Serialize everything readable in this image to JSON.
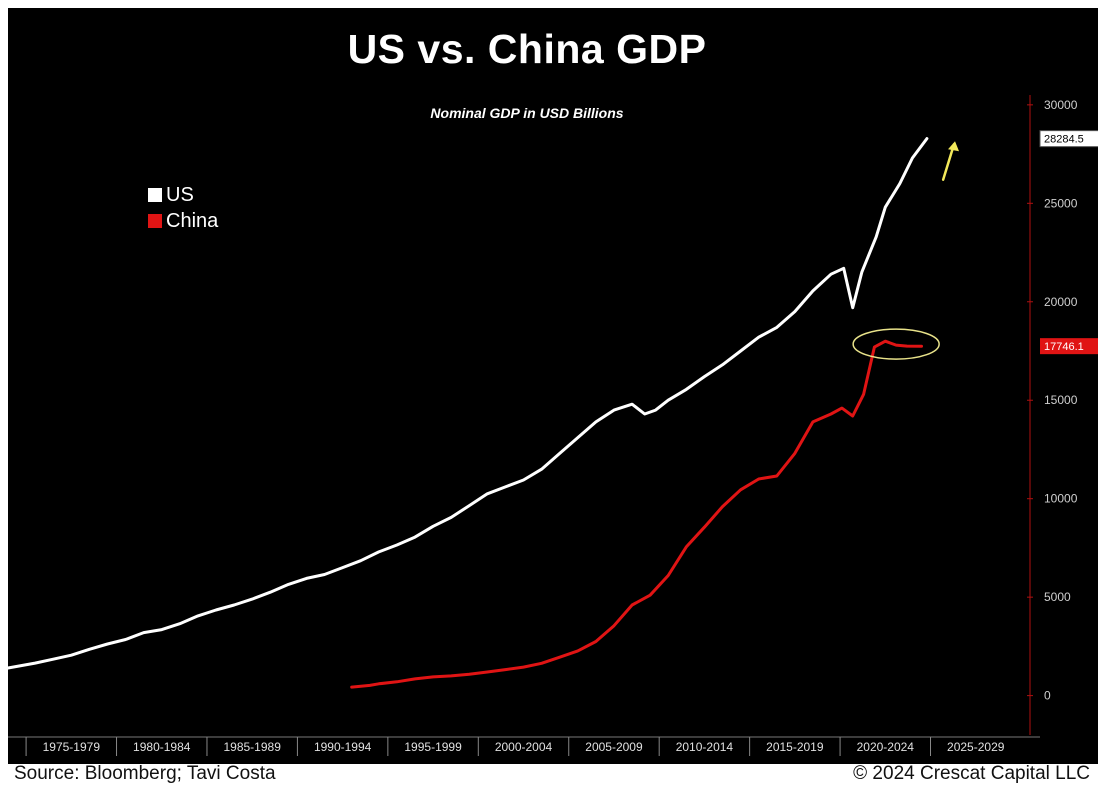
{
  "header": {
    "title": "US vs. China GDP",
    "subtitle": "Nominal GDP in USD Billions"
  },
  "footer": {
    "source": "Source: Bloomberg; Tavi Costa",
    "copyright": "© 2024 Crescat Capital LLC"
  },
  "colors": {
    "background": "#000000",
    "us": "#ffffff",
    "china": "#e01414",
    "highlight": "#e8e28a",
    "arrow": "#f2e85a"
  },
  "chart_data": {
    "type": "line",
    "title": "US vs. China GDP",
    "subtitle": "Nominal GDP in USD Billions",
    "xlabel": "",
    "ylabel": "",
    "ylim": [
      -2000,
      30500
    ],
    "xlim": [
      1973.5,
      2030
    ],
    "yticks": [
      0,
      5000,
      10000,
      15000,
      20000,
      25000,
      30000
    ],
    "ytick_labels": [
      "0",
      "5000",
      "10000",
      "15000",
      "20000",
      "25000",
      "30000"
    ],
    "xtick_labels": [
      "1975-1979",
      "1980-1984",
      "1985-1989",
      "1990-1994",
      "1995-1999",
      "2000-2004",
      "2005-2009",
      "2010-2014",
      "2015-2019",
      "2020-2024",
      "2025-2029"
    ],
    "legend_position": "top-left",
    "grid": false,
    "series": [
      {
        "name": "US",
        "color": "#ffffff",
        "last_value_label": "28284.5",
        "points": [
          [
            1973.5,
            1400
          ],
          [
            1975,
            1650
          ],
          [
            1976,
            1850
          ],
          [
            1977,
            2050
          ],
          [
            1978,
            2350
          ],
          [
            1979,
            2620
          ],
          [
            1980,
            2850
          ],
          [
            1981,
            3200
          ],
          [
            1982,
            3350
          ],
          [
            1983,
            3650
          ],
          [
            1984,
            4050
          ],
          [
            1985,
            4350
          ],
          [
            1986,
            4600
          ],
          [
            1987,
            4900
          ],
          [
            1988,
            5250
          ],
          [
            1989,
            5650
          ],
          [
            1990,
            5950
          ],
          [
            1991,
            6150
          ],
          [
            1992,
            6500
          ],
          [
            1993,
            6850
          ],
          [
            1994,
            7300
          ],
          [
            1995,
            7650
          ],
          [
            1996,
            8050
          ],
          [
            1997,
            8600
          ],
          [
            1998,
            9050
          ],
          [
            1999,
            9650
          ],
          [
            2000,
            10250
          ],
          [
            2001,
            10600
          ],
          [
            2002,
            10950
          ],
          [
            2003,
            11500
          ],
          [
            2004,
            12300
          ],
          [
            2005,
            13100
          ],
          [
            2006,
            13900
          ],
          [
            2007,
            14500
          ],
          [
            2008,
            14800
          ],
          [
            2008.7,
            14300
          ],
          [
            2009.3,
            14500
          ],
          [
            2010,
            15000
          ],
          [
            2011,
            15550
          ],
          [
            2012,
            16200
          ],
          [
            2013,
            16800
          ],
          [
            2014,
            17500
          ],
          [
            2015,
            18200
          ],
          [
            2016,
            18700
          ],
          [
            2017,
            19500
          ],
          [
            2018,
            20550
          ],
          [
            2019,
            21400
          ],
          [
            2019.7,
            21700
          ],
          [
            2020.2,
            19700
          ],
          [
            2020.7,
            21500
          ],
          [
            2021.5,
            23300
          ],
          [
            2022,
            24800
          ],
          [
            2022.8,
            26000
          ],
          [
            2023.5,
            27300
          ],
          [
            2024.3,
            28284
          ]
        ]
      },
      {
        "name": "China",
        "color": "#e01414",
        "last_value_label": "17746.1",
        "points": [
          [
            1992.5,
            430
          ],
          [
            1993.5,
            520
          ],
          [
            1994,
            600
          ],
          [
            1995,
            700
          ],
          [
            1996,
            850
          ],
          [
            1997,
            950
          ],
          [
            1998,
            1000
          ],
          [
            1999,
            1080
          ],
          [
            2000,
            1200
          ],
          [
            2001,
            1320
          ],
          [
            2002,
            1450
          ],
          [
            2003,
            1640
          ],
          [
            2004,
            1950
          ],
          [
            2005,
            2270
          ],
          [
            2006,
            2750
          ],
          [
            2007,
            3550
          ],
          [
            2008,
            4600
          ],
          [
            2009,
            5100
          ],
          [
            2010,
            6100
          ],
          [
            2011,
            7550
          ],
          [
            2012,
            8550
          ],
          [
            2013,
            9600
          ],
          [
            2014,
            10450
          ],
          [
            2015,
            11000
          ],
          [
            2016,
            11150
          ],
          [
            2017,
            12300
          ],
          [
            2018,
            13900
          ],
          [
            2019,
            14300
          ],
          [
            2019.6,
            14600
          ],
          [
            2020.2,
            14200
          ],
          [
            2020.8,
            15300
          ],
          [
            2021.4,
            17700
          ],
          [
            2022,
            18000
          ],
          [
            2022.6,
            17800
          ],
          [
            2023.2,
            17750
          ],
          [
            2024,
            17746
          ]
        ]
      }
    ]
  }
}
